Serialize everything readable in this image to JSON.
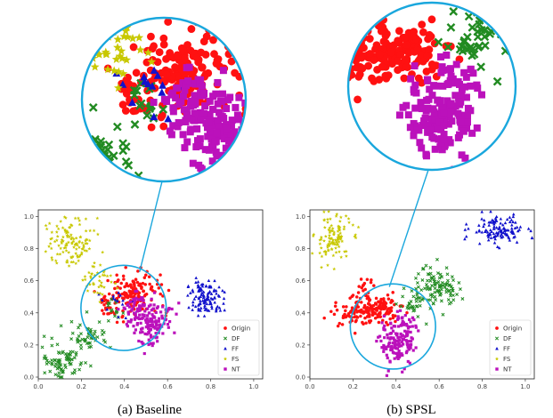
{
  "chart_data": [
    {
      "type": "scatter",
      "caption": "(a)  Baseline",
      "xlim": [
        0.0,
        1.0
      ],
      "ylim": [
        0.0,
        1.0
      ],
      "x_ticks": [
        "0.0",
        "0.2",
        "0.4",
        "0.6",
        "0.8",
        "1.0"
      ],
      "y_ticks": [
        "0.0",
        "0.2",
        "0.4",
        "0.6",
        "0.8",
        "1.0"
      ],
      "legend_placement": "bottom-right",
      "zoom_region": {
        "center": [
          0.38,
          0.42
        ],
        "radius": 0.19
      },
      "series": [
        {
          "name": "Origin",
          "color": "#ff1111",
          "marker": "circle",
          "clusters": [
            {
              "cx": 0.44,
              "cy": 0.52,
              "sx": 0.06,
              "sy": 0.06,
              "n": 110
            },
            {
              "cx": 0.36,
              "cy": 0.46,
              "sx": 0.05,
              "sy": 0.06,
              "n": 60
            }
          ]
        },
        {
          "name": "DF",
          "color": "#228b22",
          "marker": "x",
          "clusters": [
            {
              "cx": 0.11,
              "cy": 0.1,
              "sx": 0.05,
              "sy": 0.05,
              "n": 80
            },
            {
              "cx": 0.22,
              "cy": 0.25,
              "sx": 0.04,
              "sy": 0.05,
              "n": 50
            },
            {
              "cx": 0.33,
              "cy": 0.4,
              "sx": 0.03,
              "sy": 0.04,
              "n": 15
            }
          ]
        },
        {
          "name": "FF",
          "color": "#1111cc",
          "marker": "triangle",
          "clusters": [
            {
              "cx": 0.74,
              "cy": 0.49,
              "sx": 0.04,
              "sy": 0.05,
              "n": 110
            },
            {
              "cx": 0.36,
              "cy": 0.44,
              "sx": 0.05,
              "sy": 0.06,
              "n": 15
            }
          ]
        },
        {
          "name": "FS",
          "color": "#c8c800",
          "marker": "star",
          "clusters": [
            {
              "cx": 0.14,
              "cy": 0.81,
              "sx": 0.05,
              "sy": 0.07,
              "n": 120
            },
            {
              "cx": 0.27,
              "cy": 0.58,
              "sx": 0.04,
              "sy": 0.05,
              "n": 40
            }
          ]
        },
        {
          "name": "NT",
          "color": "#bb11bb",
          "marker": "square",
          "clusters": [
            {
              "cx": 0.5,
              "cy": 0.33,
              "sx": 0.05,
              "sy": 0.06,
              "n": 130
            },
            {
              "cx": 0.43,
              "cy": 0.44,
              "sx": 0.04,
              "sy": 0.04,
              "n": 40
            }
          ]
        }
      ]
    },
    {
      "type": "scatter",
      "caption": "(b)  SPSL",
      "xlim": [
        0.0,
        1.0
      ],
      "ylim": [
        0.0,
        1.0
      ],
      "x_ticks": [
        "0.0",
        "0.2",
        "0.4",
        "0.6",
        "0.8",
        "1.0"
      ],
      "y_ticks": [
        "0.0",
        "0.2",
        "0.4",
        "0.6",
        "0.8",
        "1.0"
      ],
      "legend_placement": "bottom-right",
      "zoom_region": {
        "center": [
          0.37,
          0.31
        ],
        "radius": 0.19
      },
      "series": [
        {
          "name": "Origin",
          "color": "#ff1111",
          "marker": "circle",
          "clusters": [
            {
              "cx": 0.31,
              "cy": 0.41,
              "sx": 0.05,
              "sy": 0.04,
              "n": 130
            },
            {
              "cx": 0.19,
              "cy": 0.39,
              "sx": 0.04,
              "sy": 0.04,
              "n": 60
            },
            {
              "cx": 0.24,
              "cy": 0.52,
              "sx": 0.02,
              "sy": 0.04,
              "n": 20
            }
          ]
        },
        {
          "name": "DF",
          "color": "#228b22",
          "marker": "x",
          "clusters": [
            {
              "cx": 0.56,
              "cy": 0.55,
              "sx": 0.05,
              "sy": 0.06,
              "n": 110
            },
            {
              "cx": 0.45,
              "cy": 0.44,
              "sx": 0.03,
              "sy": 0.03,
              "n": 20
            }
          ]
        },
        {
          "name": "FF",
          "color": "#1111cc",
          "marker": "triangle",
          "clusters": [
            {
              "cx": 0.84,
              "cy": 0.88,
              "sx": 0.06,
              "sy": 0.04,
              "n": 120
            }
          ]
        },
        {
          "name": "FS",
          "color": "#c8c800",
          "marker": "star",
          "clusters": [
            {
              "cx": 0.1,
              "cy": 0.83,
              "sx": 0.04,
              "sy": 0.07,
              "n": 110
            }
          ]
        },
        {
          "name": "NT",
          "color": "#bb11bb",
          "marker": "square",
          "clusters": [
            {
              "cx": 0.39,
              "cy": 0.2,
              "sx": 0.04,
              "sy": 0.06,
              "n": 130
            },
            {
              "cx": 0.42,
              "cy": 0.32,
              "sx": 0.03,
              "sy": 0.03,
              "n": 30
            }
          ]
        }
      ]
    }
  ]
}
